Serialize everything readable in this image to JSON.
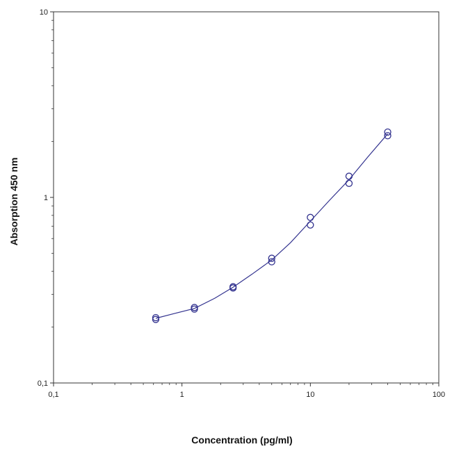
{
  "chart_data": {
    "type": "scatter",
    "xlabel": "Concentration (pg/ml)",
    "ylabel": "Absorption 450 nm",
    "xscale": "log",
    "yscale": "log",
    "xlim": [
      0.1,
      100
    ],
    "ylim": [
      0.1,
      10
    ],
    "xticks": [
      "0,1",
      "1",
      "10",
      "100"
    ],
    "yticks": [
      "0,1",
      "1",
      "10"
    ],
    "grid": false,
    "legend": "none",
    "series": [
      {
        "marker": "open-circle",
        "points": [
          {
            "x": 0.625,
            "y": 0.225
          },
          {
            "x": 0.625,
            "y": 0.22
          },
          {
            "x": 1.25,
            "y": 0.255
          },
          {
            "x": 1.25,
            "y": 0.25
          },
          {
            "x": 2.5,
            "y": 0.33
          },
          {
            "x": 2.5,
            "y": 0.325
          },
          {
            "x": 5,
            "y": 0.47
          },
          {
            "x": 5,
            "y": 0.45
          },
          {
            "x": 10,
            "y": 0.78
          },
          {
            "x": 10,
            "y": 0.71
          },
          {
            "x": 20,
            "y": 1.3
          },
          {
            "x": 20,
            "y": 1.19
          },
          {
            "x": 40,
            "y": 2.25
          },
          {
            "x": 40,
            "y": 2.15
          }
        ]
      }
    ],
    "fit_curve": {
      "x": [
        0.625,
        0.9,
        1.25,
        1.8,
        2.5,
        3.5,
        5,
        7,
        10,
        14,
        20,
        28,
        40
      ],
      "y": [
        0.223,
        0.238,
        0.252,
        0.286,
        0.328,
        0.385,
        0.46,
        0.57,
        0.745,
        0.96,
        1.245,
        1.65,
        2.2
      ]
    },
    "colors": {
      "series": "#33338f",
      "axis": "#333333"
    }
  }
}
